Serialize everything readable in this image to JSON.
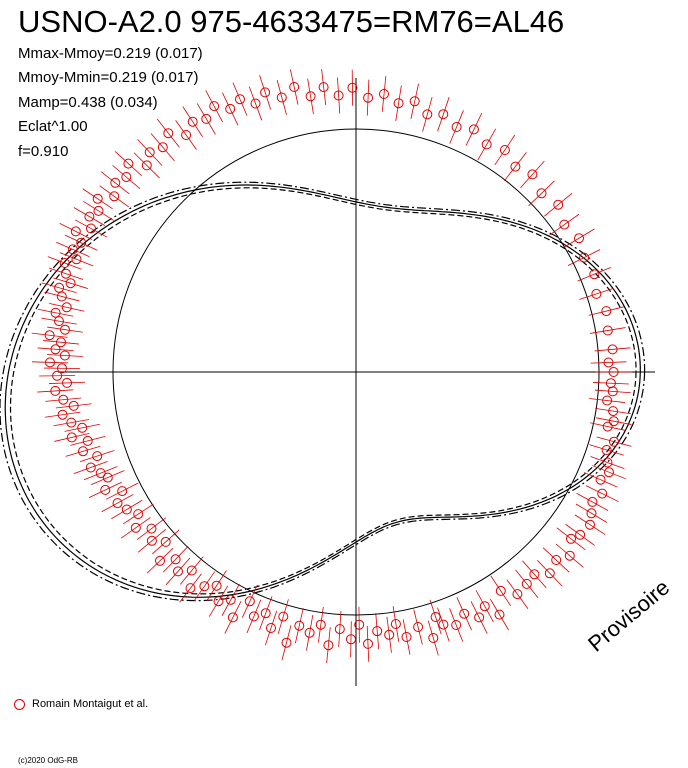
{
  "title": "USNO-A2.0 975-4633475=RM76=AL46",
  "stats": [
    "Mmax-Mmoy=0.219 (0.017)",
    "Mmoy-Mmin=0.219 (0.017)",
    "Mamp=0.438 (0.034)",
    "Eclat^1.00",
    "f=0.910"
  ],
  "watermark": "Provisoire",
  "legend": {
    "label": "Romain Montaigut et al.",
    "color": "#dd0000"
  },
  "copyright": "(c)2020 OdG-RB",
  "colors": {
    "curve": "#000000",
    "points": "#dd0000"
  },
  "chart_data": {
    "type": "polar-lightcurve",
    "period_fraction_f": 0.91,
    "amplitude": 0.438,
    "amplitude_err": 0.034,
    "fourier_model": {
      "a1": -0.17,
      "b1": 0.03,
      "a2": 0.3,
      "b2": -0.07,
      "a3": 0.04,
      "b3": 0.03
    },
    "fit_error_curves": [
      "dashed",
      "dash-dot"
    ],
    "observations": [
      {
        "phase": 0.0,
        "r": 1.06
      },
      {
        "phase": 0.007,
        "r": 1.05
      },
      {
        "phase": 0.012,
        "r": 1.06
      },
      {
        "phase": 0.018,
        "r": 1.04
      },
      {
        "phase": 0.024,
        "r": 1.07
      },
      {
        "phase": 0.03,
        "r": 1.08
      },
      {
        "phase": 0.034,
        "r": 1.06
      },
      {
        "phase": 0.042,
        "r": 1.1
      },
      {
        "phase": 0.048,
        "r": 1.08
      },
      {
        "phase": 0.055,
        "r": 1.1
      },
      {
        "phase": 0.06,
        "r": 1.12
      },
      {
        "phase": 0.066,
        "r": 1.1
      },
      {
        "phase": 0.073,
        "r": 1.13
      },
      {
        "phase": 0.08,
        "r": 1.11
      },
      {
        "phase": 0.086,
        "r": 1.13
      },
      {
        "phase": 0.092,
        "r": 1.15
      },
      {
        "phase": 0.1,
        "r": 1.14
      },
      {
        "phase": 0.105,
        "r": 1.12
      },
      {
        "phase": 0.113,
        "r": 1.16
      },
      {
        "phase": 0.12,
        "r": 1.13
      },
      {
        "phase": 0.128,
        "r": 1.15
      },
      {
        "phase": 0.135,
        "r": 1.11
      },
      {
        "phase": 0.142,
        "r": 1.12
      },
      {
        "phase": 0.15,
        "r": 1.13
      },
      {
        "phase": 0.157,
        "r": 1.08
      },
      {
        "phase": 0.165,
        "r": 1.16
      },
      {
        "phase": 0.17,
        "r": 1.1
      },
      {
        "phase": 0.176,
        "r": 1.13
      },
      {
        "phase": 0.183,
        "r": 1.09
      },
      {
        "phase": 0.19,
        "r": 1.12
      },
      {
        "phase": 0.197,
        "r": 1.1
      },
      {
        "phase": 0.2,
        "r": 1.06
      },
      {
        "phase": 0.205,
        "r": 1.14
      },
      {
        "phase": 0.212,
        "r": 1.08
      },
      {
        "phase": 0.22,
        "r": 1.11
      },
      {
        "phase": 0.225,
        "r": 1.05
      },
      {
        "phase": 0.23,
        "r": 1.09
      },
      {
        "phase": 0.237,
        "r": 1.07
      },
      {
        "phase": 0.243,
        "r": 1.12
      },
      {
        "phase": 0.248,
        "r": 1.04
      },
      {
        "phase": 0.253,
        "r": 1.1
      },
      {
        "phase": 0.26,
        "r": 1.06
      },
      {
        "phase": 0.266,
        "r": 1.13
      },
      {
        "phase": 0.272,
        "r": 1.05
      },
      {
        "phase": 0.278,
        "r": 1.09
      },
      {
        "phase": 0.285,
        "r": 1.07
      },
      {
        "phase": 0.29,
        "r": 1.15
      },
      {
        "phase": 0.296,
        "r": 1.05
      },
      {
        "phase": 0.301,
        "r": 1.11
      },
      {
        "phase": 0.307,
        "r": 1.06
      },
      {
        "phase": 0.313,
        "r": 1.09
      },
      {
        "phase": 0.319,
        "r": 1.04
      },
      {
        "phase": 0.324,
        "r": 1.13
      },
      {
        "phase": 0.33,
        "r": 1.07
      },
      {
        "phase": 0.336,
        "r": 1.1
      },
      {
        "phase": 0.342,
        "r": 1.05
      },
      {
        "phase": 0.348,
        "r": 1.08
      },
      {
        "phase": 0.354,
        "r": 1.12
      },
      {
        "phase": 0.36,
        "r": 1.06
      },
      {
        "phase": 0.366,
        "r": 1.1
      },
      {
        "phase": 0.372,
        "r": 1.07
      },
      {
        "phase": 0.378,
        "r": 1.12
      },
      {
        "phase": 0.384,
        "r": 1.05
      },
      {
        "phase": 0.39,
        "r": 1.09
      },
      {
        "phase": 0.396,
        "r": 1.06
      },
      {
        "phase": 0.402,
        "r": 1.11
      },
      {
        "phase": 0.408,
        "r": 1.07
      },
      {
        "phase": 0.414,
        "r": 1.1
      },
      {
        "phase": 0.42,
        "r": 1.12
      },
      {
        "phase": 0.425,
        "r": 1.08
      },
      {
        "phase": 0.43,
        "r": 1.14
      },
      {
        "phase": 0.436,
        "r": 1.11
      },
      {
        "phase": 0.44,
        "r": 1.13
      },
      {
        "phase": 0.445,
        "r": 1.16
      },
      {
        "phase": 0.45,
        "r": 1.12
      },
      {
        "phase": 0.455,
        "r": 1.17
      },
      {
        "phase": 0.46,
        "r": 1.14
      },
      {
        "phase": 0.464,
        "r": 1.2
      },
      {
        "phase": 0.468,
        "r": 1.15
      },
      {
        "phase": 0.472,
        "r": 1.19
      },
      {
        "phase": 0.477,
        "r": 1.22
      },
      {
        "phase": 0.481,
        "r": 1.17
      },
      {
        "phase": 0.485,
        "r": 1.21
      },
      {
        "phase": 0.49,
        "r": 1.24
      },
      {
        "phase": 0.494,
        "r": 1.19
      },
      {
        "phase": 0.498,
        "r": 1.23
      },
      {
        "phase": 0.502,
        "r": 1.21
      },
      {
        "phase": 0.505,
        "r": 1.26
      },
      {
        "phase": 0.509,
        "r": 1.2
      },
      {
        "phase": 0.512,
        "r": 1.24
      },
      {
        "phase": 0.516,
        "r": 1.22
      },
      {
        "phase": 0.519,
        "r": 1.27
      },
      {
        "phase": 0.523,
        "r": 1.21
      },
      {
        "phase": 0.527,
        "r": 1.24
      },
      {
        "phase": 0.531,
        "r": 1.26
      },
      {
        "phase": 0.535,
        "r": 1.22
      },
      {
        "phase": 0.54,
        "r": 1.25
      },
      {
        "phase": 0.544,
        "r": 1.27
      },
      {
        "phase": 0.548,
        "r": 1.23
      },
      {
        "phase": 0.552,
        "r": 1.26
      },
      {
        "phase": 0.557,
        "r": 1.28
      },
      {
        "phase": 0.561,
        "r": 1.24
      },
      {
        "phase": 0.565,
        "r": 1.27
      },
      {
        "phase": 0.57,
        "r": 1.25
      },
      {
        "phase": 0.574,
        "r": 1.29
      },
      {
        "phase": 0.579,
        "r": 1.24
      },
      {
        "phase": 0.584,
        "r": 1.27
      },
      {
        "phase": 0.589,
        "r": 1.25
      },
      {
        "phase": 0.594,
        "r": 1.28
      },
      {
        "phase": 0.6,
        "r": 1.23
      },
      {
        "phase": 0.606,
        "r": 1.26
      },
      {
        "phase": 0.612,
        "r": 1.24
      },
      {
        "phase": 0.618,
        "r": 1.27
      },
      {
        "phase": 0.624,
        "r": 1.21
      },
      {
        "phase": 0.63,
        "r": 1.24
      },
      {
        "phase": 0.637,
        "r": 1.22
      },
      {
        "phase": 0.644,
        "r": 1.25
      },
      {
        "phase": 0.651,
        "r": 1.2
      },
      {
        "phase": 0.658,
        "r": 1.23
      },
      {
        "phase": 0.665,
        "r": 1.21
      },
      {
        "phase": 0.672,
        "r": 1.24
      },
      {
        "phase": 0.679,
        "r": 1.2
      },
      {
        "phase": 0.686,
        "r": 1.22
      },
      {
        "phase": 0.693,
        "r": 1.18
      },
      {
        "phase": 0.7,
        "r": 1.21
      },
      {
        "phase": 0.708,
        "r": 1.17
      },
      {
        "phase": 0.716,
        "r": 1.2
      },
      {
        "phase": 0.724,
        "r": 1.15
      },
      {
        "phase": 0.732,
        "r": 1.18
      },
      {
        "phase": 0.74,
        "r": 1.14
      },
      {
        "phase": 0.748,
        "r": 1.17
      },
      {
        "phase": 0.757,
        "r": 1.13
      },
      {
        "phase": 0.766,
        "r": 1.15
      },
      {
        "phase": 0.775,
        "r": 1.12
      },
      {
        "phase": 0.784,
        "r": 1.14
      },
      {
        "phase": 0.793,
        "r": 1.1
      },
      {
        "phase": 0.802,
        "r": 1.12
      },
      {
        "phase": 0.812,
        "r": 1.09
      },
      {
        "phase": 0.822,
        "r": 1.11
      },
      {
        "phase": 0.833,
        "r": 1.08
      },
      {
        "phase": 0.844,
        "r": 1.1
      },
      {
        "phase": 0.855,
        "r": 1.07
      },
      {
        "phase": 0.866,
        "r": 1.09
      },
      {
        "phase": 0.878,
        "r": 1.06
      },
      {
        "phase": 0.89,
        "r": 1.08
      },
      {
        "phase": 0.902,
        "r": 1.05
      },
      {
        "phase": 0.914,
        "r": 1.07
      },
      {
        "phase": 0.926,
        "r": 1.05
      },
      {
        "phase": 0.938,
        "r": 1.06
      },
      {
        "phase": 0.95,
        "r": 1.04
      },
      {
        "phase": 0.962,
        "r": 1.06
      },
      {
        "phase": 0.974,
        "r": 1.05
      },
      {
        "phase": 0.986,
        "r": 1.06
      },
      {
        "phase": 0.994,
        "r": 1.04
      }
    ]
  }
}
